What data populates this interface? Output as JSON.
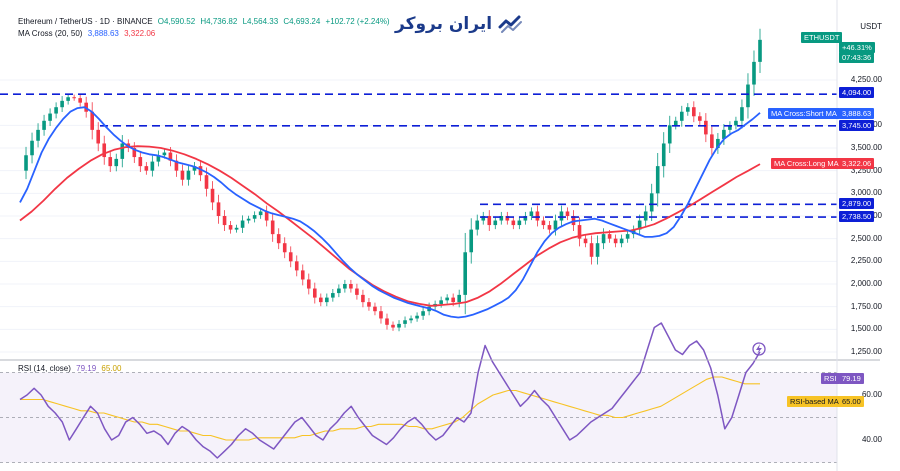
{
  "header": {
    "symbol_line": "Ethereum / TetherUS · 1D · BINANCE",
    "open": "O4,590.52",
    "high": "H4,736.82",
    "low": "L4,564.33",
    "close": "C4,693.24",
    "change": "+102.72 (+2.24%)",
    "ma_label": "MA Cross (20, 50)",
    "ma_short": "3,888.63",
    "ma_long": "3,322.06",
    "rsi_label": "RSI (14, close)",
    "rsi_value": "79.19",
    "rsi_ma_value": "65.00"
  },
  "logo": {
    "text": "ایران بروکر"
  },
  "price_axis": {
    "currency": "USDT",
    "ticks": [
      "4,250.00",
      "3,750.00",
      "3,500.00",
      "3,250.00",
      "3,000.00",
      "2,750.00",
      "2,500.00",
      "2,250.00",
      "2,000.00",
      "1,750.00",
      "1,500.00",
      "1,250.00"
    ]
  },
  "rsi_axis": {
    "ticks": [
      "60.00",
      "40.00"
    ]
  },
  "tags": {
    "symbol": "ETHUSDT",
    "last_price": "",
    "change_pct": "+46.31%",
    "countdown": "07:43:36",
    "level_4094": "4,094.00",
    "ma_short_label": "MA Cross:Short MA",
    "ma_short_value": "3,888.63",
    "level_3745": "3,745.00",
    "ma_long_label": "MA Cross:Long MA",
    "ma_long_value": "3,322.06",
    "level_2879": "2,879.00",
    "level_2738": "2,738.50",
    "rsi_label": "RSI",
    "rsi_value": "79.19",
    "rsi_ma_label": "RSI-based MA",
    "rsi_ma_value": "65.00"
  },
  "colors": {
    "up": "#089981",
    "down": "#f23645",
    "ma_short": "#2962ff",
    "ma_long": "#f23645",
    "level_line": "#0d1fd6",
    "rsi": "#7e57c2",
    "rsi_ma": "#f7c325"
  },
  "chart_data": {
    "type": "line",
    "title": "Ethereum / TetherUS · 1D · BINANCE",
    "ylabel": "USDT",
    "ylim": [
      1250,
      4750
    ],
    "horizontal_levels": [
      4094.0,
      3745.0,
      2879.0,
      2738.5
    ],
    "series": [
      {
        "name": "Ethereum / TetherUS",
        "values": [
          3250,
          3420,
          3580,
          3700,
          3800,
          3880,
          3950,
          4020,
          4060,
          4050,
          4000,
          3900,
          3700,
          3550,
          3400,
          3300,
          3380,
          3550,
          3500,
          3400,
          3300,
          3250,
          3350,
          3420,
          3450,
          3360,
          3250,
          3150,
          3250,
          3300,
          3200,
          3050,
          2900,
          2750,
          2650,
          2600,
          2620,
          2700,
          2720,
          2760,
          2800,
          2700,
          2550,
          2450,
          2350,
          2250,
          2150,
          2050,
          1950,
          1850,
          1800,
          1850,
          1900,
          1950,
          2000,
          1950,
          1880,
          1800,
          1750,
          1700,
          1620,
          1550,
          1520,
          1560,
          1600,
          1620,
          1650,
          1700,
          1750,
          1780,
          1820,
          1850,
          1800,
          1880,
          2350,
          2600,
          2700,
          2750,
          2650,
          2700,
          2750,
          2700,
          2650,
          2700,
          2750,
          2800,
          2700,
          2650,
          2600,
          2700,
          2800,
          2750,
          2650,
          2500,
          2450,
          2300,
          2450,
          2550,
          2500,
          2450,
          2500,
          2550,
          2600,
          2700,
          2800,
          3000,
          3300,
          3550,
          3750,
          3800,
          3900,
          3950,
          3850,
          3800,
          3650,
          3500,
          3600,
          3700,
          3750,
          3800,
          3950,
          4200,
          4450,
          4693
        ]
      },
      {
        "name": "MA Cross:Short MA",
        "values": [
          2900,
          3050,
          3250,
          3450,
          3600,
          3720,
          3820,
          3900,
          3940,
          3950,
          3900,
          3820,
          3730,
          3650,
          3580,
          3520,
          3480,
          3450,
          3430,
          3420,
          3400,
          3370,
          3340,
          3320,
          3300,
          3270,
          3230,
          3180,
          3120,
          3050,
          2990,
          2940,
          2890,
          2850,
          2810,
          2780,
          2760,
          2740,
          2720,
          2690,
          2640,
          2580,
          2510,
          2430,
          2340,
          2250,
          2170,
          2100,
          2040,
          1980,
          1930,
          1890,
          1850,
          1820,
          1790,
          1770,
          1750,
          1730,
          1700,
          1660,
          1640,
          1630,
          1640,
          1660,
          1690,
          1720,
          1760,
          1800,
          1850,
          1930,
          2050,
          2200,
          2350,
          2470,
          2560,
          2620,
          2660,
          2690,
          2700,
          2710,
          2720,
          2700,
          2670,
          2640,
          2610,
          2580,
          2550,
          2520,
          2520,
          2530,
          2560,
          2630,
          2750,
          2890,
          3050,
          3210,
          3370,
          3500,
          3600,
          3660,
          3700,
          3760,
          3820,
          3888.63
        ]
      },
      {
        "name": "MA Cross:Long MA",
        "values": [
          2700,
          2800,
          2920,
          3050,
          3170,
          3270,
          3360,
          3430,
          3480,
          3510,
          3520,
          3515,
          3500,
          3470,
          3430,
          3380,
          3320,
          3250,
          3170,
          3080,
          2990,
          2890,
          2800,
          2700,
          2600,
          2500,
          2390,
          2280,
          2170,
          2080,
          1990,
          1920,
          1860,
          1810,
          1780,
          1760,
          1770,
          1780,
          1800,
          1850,
          1920,
          2010,
          2110,
          2210,
          2310,
          2390,
          2460,
          2510,
          2540,
          2560,
          2570,
          2580,
          2590,
          2620,
          2660,
          2720,
          2790,
          2860,
          2940,
          3020,
          3100,
          3180,
          3250,
          3322.06
        ]
      },
      {
        "name": "RSI",
        "values": [
          58,
          60,
          63,
          60,
          55,
          52,
          48,
          40,
          45,
          50,
          55,
          52,
          45,
          40,
          42,
          48,
          50,
          47,
          43,
          44,
          42,
          38,
          43,
          46,
          44,
          40,
          37,
          35,
          32,
          35,
          38,
          42,
          45,
          43,
          40,
          38,
          36,
          40,
          44,
          48,
          50,
          46,
          42,
          40,
          45,
          48,
          52,
          55,
          50,
          46,
          42,
          40,
          38,
          41,
          45,
          48,
          50,
          47,
          43,
          40,
          42,
          46,
          50,
          48,
          52,
          70,
          82,
          75,
          70,
          65,
          60,
          55,
          58,
          62,
          58,
          55,
          50,
          45,
          40,
          42,
          45,
          48,
          50,
          52,
          54,
          58,
          62,
          66,
          70,
          80,
          90,
          92,
          86,
          80,
          78,
          82,
          84,
          80,
          72,
          60,
          45,
          50,
          60,
          70,
          74,
          79.19
        ]
      },
      {
        "name": "RSI-based MA",
        "values": [
          58,
          58,
          58,
          58,
          57,
          56,
          55,
          54,
          53,
          53,
          52,
          52,
          51,
          50,
          49,
          48,
          48,
          47,
          47,
          46,
          45,
          44,
          44,
          43,
          42,
          42,
          41,
          40,
          40,
          40,
          40,
          41,
          41,
          41,
          41,
          41,
          41,
          42,
          42,
          43,
          44,
          44,
          45,
          45,
          45,
          46,
          46,
          47,
          47,
          47,
          47,
          46,
          46,
          45,
          45,
          46,
          47,
          48,
          50,
          53,
          56,
          58,
          60,
          61,
          62,
          62,
          61,
          60,
          59,
          58,
          57,
          56,
          55,
          54,
          53,
          52,
          51,
          51,
          50,
          50,
          51,
          52,
          53,
          54,
          55,
          57,
          59,
          61,
          63,
          65,
          67,
          68,
          68,
          67,
          66,
          65,
          65,
          65
        ]
      }
    ]
  }
}
